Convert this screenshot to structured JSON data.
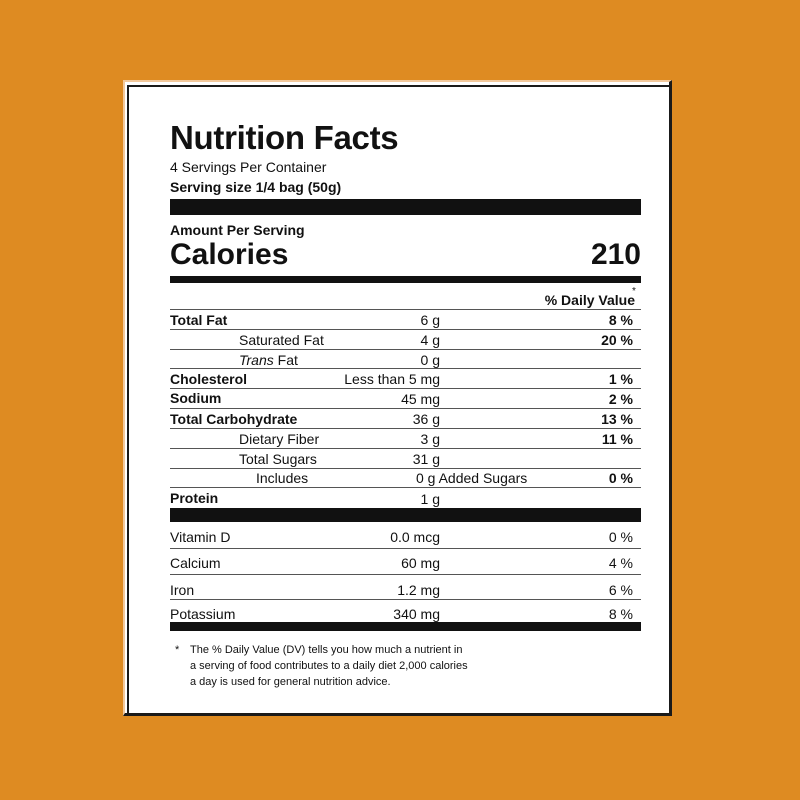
{
  "label": {
    "title": "Nutrition Facts",
    "servings_per_container": "4 Servings Per Container",
    "serving_size": "Serving size  1/4 bag (50g)",
    "amount_per_serving": "Amount Per Serving",
    "calories_label": "Calories",
    "calories_value": "210",
    "daily_value_header": "% Daily Value",
    "daily_value_star": "*",
    "nutrients": [
      {
        "name": "Total Fat",
        "amount": "6 g",
        "dv": "8 %"
      },
      {
        "name": "Saturated Fat",
        "amount": "4 g",
        "dv": "20 %"
      },
      {
        "name_italic": "Trans",
        "name_rest": " Fat",
        "amount": "0 g",
        "dv": ""
      },
      {
        "name": "Cholesterol",
        "amount": "Less than 5 mg",
        "dv": "1 %"
      },
      {
        "name": "Sodium",
        "amount": "45 mg",
        "dv": "2 %"
      },
      {
        "name": "Total Carbohydrate",
        "amount": "36 g",
        "dv": "13 %"
      },
      {
        "name": "Dietary Fiber",
        "amount": "3 g",
        "dv": "11 %"
      },
      {
        "name": "Total Sugars",
        "amount": "31 g",
        "dv": ""
      },
      {
        "name": "Includes",
        "amount": "0 g Added Sugars",
        "dv": "0 %"
      },
      {
        "name": "Protein",
        "amount": "1 g",
        "dv": ""
      }
    ],
    "vitamins": [
      {
        "name": "Vitamin D",
        "amount": "0.0 mcg",
        "dv": "0 %"
      },
      {
        "name": "Calcium",
        "amount": "60 mg",
        "dv": "4 %"
      },
      {
        "name": "Iron",
        "amount": "1.2 mg",
        "dv": "6 %"
      },
      {
        "name": "Potassium",
        "amount": "340 mg",
        "dv": "8 %"
      }
    ],
    "footnote_star": "*",
    "footnote_lines": [
      "The % Daily Value (DV) tells you how much a nutrient in",
      "a serving of food contributes to a daily diet 2,000 calories",
      "a day is used for general nutrition advice."
    ]
  },
  "colors": {
    "background": "#DE8B22",
    "label_background": "#FFFFFF",
    "ink": "#111111"
  }
}
